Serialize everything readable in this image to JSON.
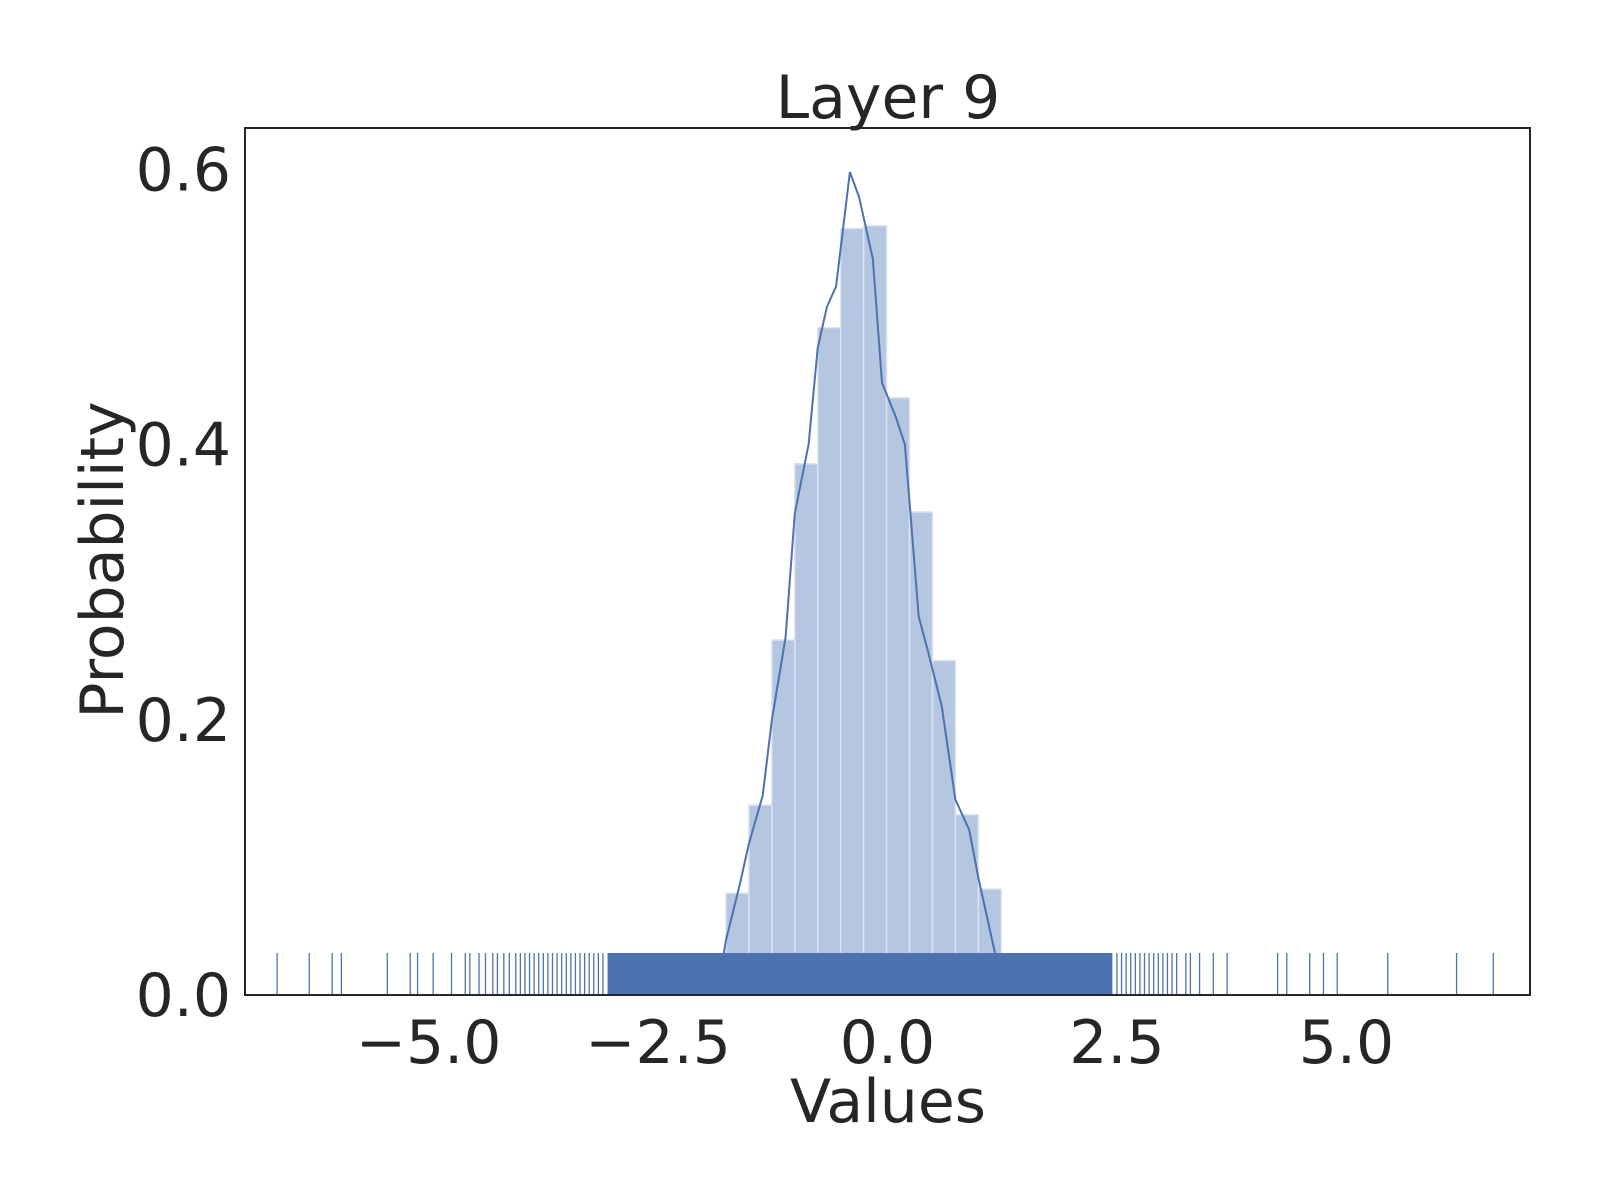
{
  "chart_data": {
    "type": "bar",
    "title": "Layer 9",
    "xlabel": "Values",
    "ylabel": "Probability",
    "xlim": [
      -7.0,
      7.0
    ],
    "ylim": [
      0.0,
      0.63
    ],
    "x_ticks": [
      -5.0,
      -2.5,
      0.0,
      2.5,
      5.0
    ],
    "x_tick_labels": [
      "−5.0",
      "−2.5",
      "0.0",
      "2.5",
      "5.0"
    ],
    "y_ticks": [
      0.0,
      0.2,
      0.4,
      0.6
    ],
    "y_tick_labels": [
      "0.0",
      "0.2",
      "0.4",
      "0.6"
    ],
    "grid": false,
    "colors": {
      "bar_fill": "#b5c6e0",
      "bar_edge": "#dbe3f0",
      "line": "#4c72b0",
      "rug": "#4c72b0",
      "axis": "#262626"
    },
    "histogram": {
      "bin_edges": [
        -1.76,
        -1.51,
        -1.26,
        -1.01,
        -0.76,
        -0.51,
        -0.26,
        -0.01,
        0.24,
        0.49,
        0.74,
        0.99,
        1.24,
        1.49
      ],
      "values": [
        0.074,
        0.138,
        0.258,
        0.386,
        0.485,
        0.557,
        0.559,
        0.434,
        0.351,
        0.243,
        0.131,
        0.077,
        0.0
      ]
    },
    "kde": {
      "x": [
        -1.86,
        -1.76,
        -1.61,
        -1.51,
        -1.36,
        -1.26,
        -1.11,
        -1.01,
        -0.86,
        -0.76,
        -0.66,
        -0.56,
        -0.41,
        -0.31,
        -0.16,
        -0.06,
        0.09,
        0.19,
        0.34,
        0.44,
        0.59,
        0.74,
        0.89,
        0.99,
        1.14,
        1.24,
        1.39,
        1.49,
        1.64,
        1.79
      ],
      "y": [
        0.0,
        0.04,
        0.08,
        0.11,
        0.145,
        0.2,
        0.26,
        0.35,
        0.4,
        0.47,
        0.5,
        0.515,
        0.598,
        0.58,
        0.535,
        0.445,
        0.42,
        0.4,
        0.275,
        0.25,
        0.21,
        0.142,
        0.12,
        0.085,
        0.04,
        0.01,
        0.0,
        0.0,
        0.0,
        0.0
      ]
    },
    "rug": {
      "dense_range": [
        -3.05,
        2.45
      ],
      "values": [
        -6.65,
        -6.3,
        -6.05,
        -5.95,
        -5.45,
        -5.2,
        -5.12,
        -4.95,
        -4.75,
        -4.6,
        -4.55,
        -4.45,
        -4.38,
        -4.3,
        -4.25,
        -4.18,
        -4.12,
        -4.05,
        -4.0,
        -3.95,
        -3.9,
        -3.85,
        -3.8,
        -3.75,
        -3.7,
        -3.65,
        -3.6,
        -3.55,
        -3.5,
        -3.45,
        -3.4,
        -3.35,
        -3.3,
        -3.25,
        -3.2,
        -3.15,
        -3.1,
        2.5,
        2.55,
        2.6,
        2.65,
        2.7,
        2.75,
        2.8,
        2.85,
        2.9,
        2.95,
        3.0,
        3.05,
        3.1,
        3.15,
        3.25,
        3.3,
        3.4,
        3.55,
        3.7,
        4.25,
        4.35,
        4.6,
        4.75,
        4.9,
        5.45,
        6.2,
        6.6
      ]
    }
  }
}
